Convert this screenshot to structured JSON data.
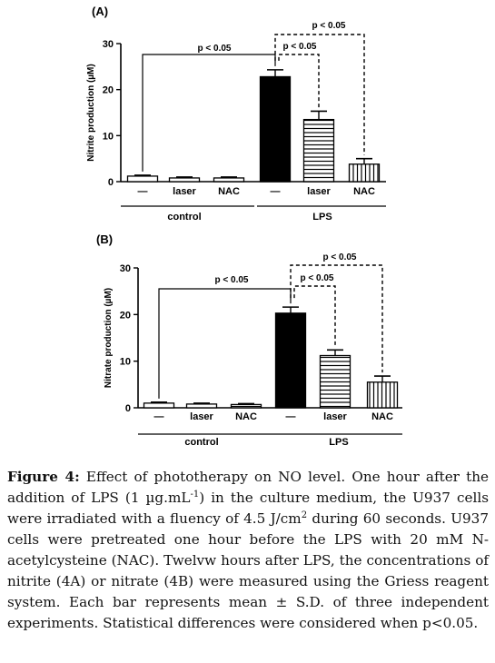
{
  "figure": {
    "panels": [
      {
        "panel_label": "(A)",
        "ylabel": "Nitrite production (µM)"
      },
      {
        "panel_label": "(B)",
        "ylabel": "Nitrate production (µM)"
      }
    ]
  },
  "chart_data": [
    {
      "type": "bar",
      "title": "(A)",
      "ylabel": "Nitrite production (µM)",
      "ylim": [
        0,
        30
      ],
      "yticks": [
        "0",
        "10",
        "20",
        "30"
      ],
      "categories": [
        "—",
        "laser",
        "NAC",
        "—",
        "laser",
        "NAC"
      ],
      "groups": [
        {
          "label": "control",
          "categories": [
            "—",
            "laser",
            "NAC"
          ]
        },
        {
          "label": "LPS",
          "categories": [
            "—",
            "laser",
            "NAC"
          ]
        }
      ],
      "values": [
        1.2,
        0.8,
        0.8,
        22.8,
        13.5,
        3.8
      ],
      "errors": [
        0.2,
        0.2,
        0.2,
        1.5,
        1.8,
        1.2
      ],
      "fills": [
        "white",
        "white",
        "hlines",
        "black",
        "hlines",
        "vlines"
      ],
      "annotations": [
        "p < 0.05",
        "p < 0.05",
        "p < 0.05"
      ],
      "grid": false
    },
    {
      "type": "bar",
      "title": "(B)",
      "ylabel": "Nitrate production (µM)",
      "ylim": [
        0,
        30
      ],
      "yticks": [
        "0",
        "10",
        "20",
        "30"
      ],
      "categories": [
        "—",
        "laser",
        "NAC",
        "—",
        "laser",
        "NAC"
      ],
      "groups": [
        {
          "label": "control",
          "categories": [
            "—",
            "laser",
            "NAC"
          ]
        },
        {
          "label": "LPS",
          "categories": [
            "—",
            "laser",
            "NAC"
          ]
        }
      ],
      "values": [
        1.0,
        0.8,
        0.7,
        20.3,
        11.2,
        5.5
      ],
      "errors": [
        0.2,
        0.2,
        0.2,
        1.3,
        1.2,
        1.3
      ],
      "fills": [
        "white",
        "white",
        "hlines",
        "black",
        "hlines",
        "vlines"
      ],
      "annotations": [
        "p < 0.05",
        "p < 0.05",
        "p < 0.05"
      ],
      "grid": false
    }
  ],
  "caption": {
    "label": "Figure 4:",
    "text_1": " Effect of phototherapy on NO level. One hour after the addition of LPS (1 µg.mL",
    "sup_1": "-1",
    "text_2": ") in the culture medium, the U937 cells were irradiated with a fluency of 4.5 J/cm",
    "sup_2": "2",
    "text_3": " during 60 seconds. U937 cells were pretreated one hour before the LPS with 20 mM N-acetylcysteine (NAC). Twelvw hours after LPS, the concentrations of nitrite (4A) or nitrate (4B) were measured using the Griess reagent system. Each bar represents mean ± S.D. of three independent experiments. Statistical differences were considered when p<0.05."
  }
}
